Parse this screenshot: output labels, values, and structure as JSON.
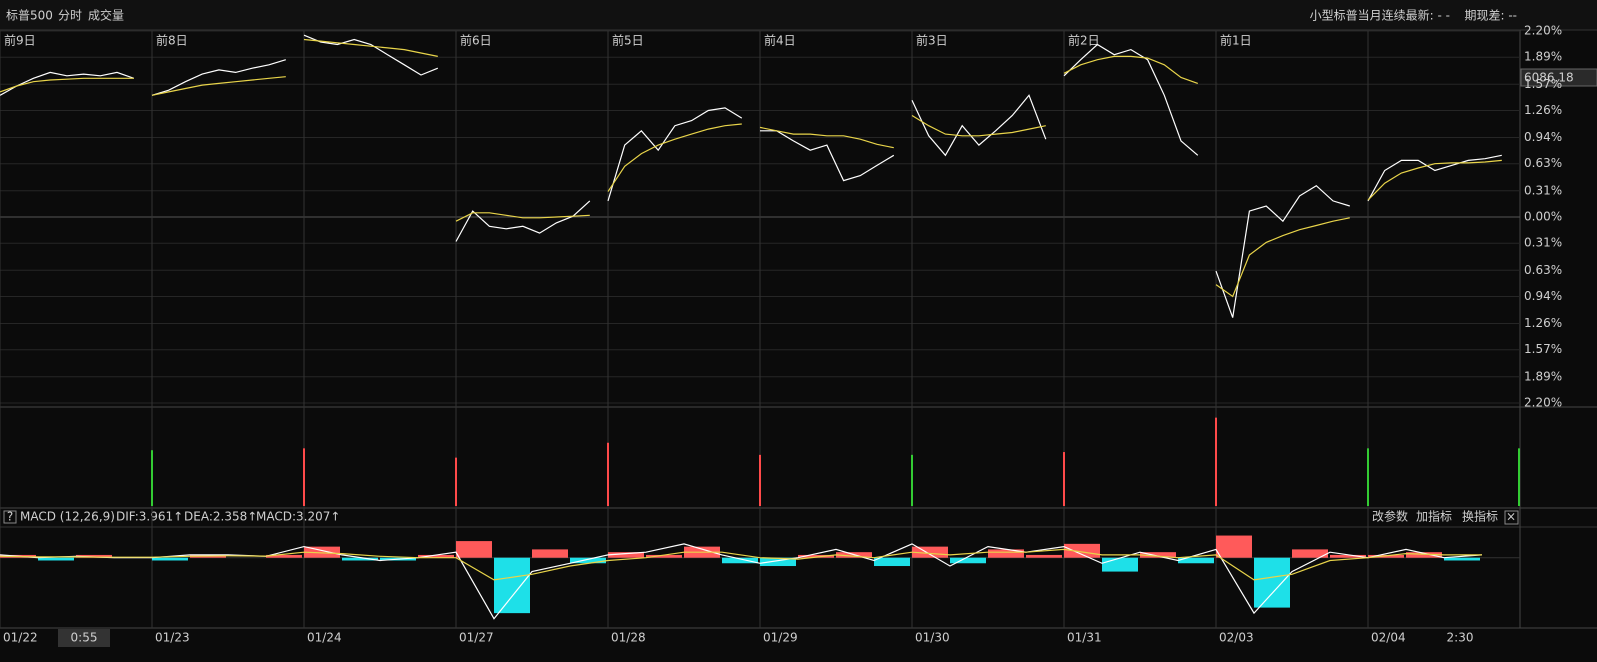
{
  "header": {
    "symbol": "标普500",
    "tabs": [
      "分时",
      "成交量"
    ],
    "right_info": "小型标普当月连续最新: - -",
    "spread": "期现差: --"
  },
  "price_label": "6086.18",
  "date_labels": [
    "01/22",
    "01/23",
    "01/24",
    "01/27",
    "01/28",
    "01/29",
    "01/30",
    "01/31",
    "02/03",
    "02/04"
  ],
  "time_labels": [
    "0:55",
    "2:30"
  ],
  "buttons": [
    "?",
    "改参数",
    "加指标",
    "换指标",
    "×"
  ],
  "chart_data": [
    {
      "type": "line",
      "day_labels": [
        "前9日",
        "前8日",
        null,
        "前6日",
        "前5日",
        "前4日",
        "前3日",
        "前2日",
        "前1日",
        null
      ],
      "xlim": [
        0,
        100
      ],
      "xticks": [
        0,
        10,
        20,
        30,
        40,
        50,
        60,
        70,
        80,
        90
      ],
      "ylim": [
        -2.2,
        2.2
      ],
      "yticks": [
        {
          "value": 2.2,
          "label": "2.20%"
        },
        {
          "value": 1.89,
          "label": "1.89%"
        },
        {
          "value": 1.57,
          "label": "1.57%"
        },
        {
          "value": 1.26,
          "label": "1.26%"
        },
        {
          "value": 0.94,
          "label": "0.94%"
        },
        {
          "value": 0.63,
          "label": "0.63%"
        },
        {
          "value": 0.31,
          "label": "0.31%"
        },
        {
          "value": 0,
          "label": "0.00%"
        },
        {
          "value": -0.31,
          "label": "0.31%"
        },
        {
          "value": -0.63,
          "label": "0.63%"
        },
        {
          "value": -0.94,
          "label": "0.94%"
        },
        {
          "value": -1.26,
          "label": "1.26%"
        },
        {
          "value": -1.57,
          "label": "1.57%"
        },
        {
          "value": -1.89,
          "label": "1.89%"
        },
        {
          "value": -2.2,
          "label": "2.20%"
        }
      ],
      "grid": true,
      "up_color": "#ff4a4a",
      "down_color": "#33cc33",
      "x": [
        0,
        1.1,
        2.2,
        3.3,
        4.4,
        5.5,
        6.6,
        7.7,
        8.8,
        9.9,
        10,
        11.1,
        12.2,
        13.3,
        14.4,
        15.5,
        16.6,
        17.7,
        18.8,
        19.9,
        20,
        21.1,
        22.2,
        23.3,
        24.4,
        25.5,
        26.6,
        27.7,
        28.8,
        29.9,
        30,
        31.1,
        32.2,
        33.3,
        34.4,
        35.5,
        36.6,
        37.7,
        38.8,
        39.9,
        40,
        41.1,
        42.2,
        43.3,
        44.4,
        45.5,
        46.6,
        47.7,
        48.8,
        49.9,
        50,
        51.1,
        52.2,
        53.3,
        54.4,
        55.5,
        56.6,
        57.7,
        58.8,
        59.9,
        60,
        61.1,
        62.2,
        63.3,
        64.4,
        65.5,
        66.6,
        67.7,
        68.8,
        69.9,
        70,
        71.1,
        72.2,
        73.3,
        74.4,
        75.5,
        76.6,
        77.7,
        78.8,
        79.9,
        80,
        81.1,
        82.2,
        83.3,
        84.4,
        85.5,
        86.6,
        87.7,
        88.8,
        89.9,
        90,
        91.1,
        92.2,
        93.3,
        94.4,
        95.5,
        96.6,
        97.7,
        98.8,
        99.9
      ],
      "series": [
        {
          "color": "#ffffff",
          "values": [
            1.44,
            1.55,
            1.64,
            1.71,
            1.67,
            1.69,
            1.67,
            1.71,
            1.64,
            null,
            1.44,
            1.5,
            1.6,
            1.69,
            1.74,
            1.71,
            1.76,
            1.8,
            1.86,
            null,
            2.15,
            2.07,
            2.04,
            2.1,
            2.04,
            1.92,
            1.8,
            1.68,
            1.76,
            null,
            -0.29,
            0.07,
            -0.11,
            -0.14,
            -0.11,
            -0.19,
            -0.07,
            0.01,
            0.19,
            null,
            0.19,
            0.85,
            1.02,
            0.79,
            1.08,
            1.14,
            1.26,
            1.29,
            1.17,
            null,
            1.02,
            1.02,
            0.9,
            0.79,
            0.85,
            0.43,
            0.49,
            0.61,
            0.73,
            null,
            1.38,
            0.96,
            0.73,
            1.08,
            0.85,
            1.02,
            1.2,
            1.44,
            0.92,
            null,
            1.67,
            1.86,
            2.04,
            1.92,
            1.98,
            1.86,
            1.44,
            0.9,
            0.73,
            null,
            -0.64,
            -1.19,
            0.07,
            0.13,
            -0.05,
            0.25,
            0.37,
            0.19,
            0.13,
            null,
            0.19,
            0.55,
            0.67,
            0.67,
            0.55,
            0.61,
            0.67,
            0.69,
            0.73,
            null
          ]
        },
        {
          "color": "#e8d44a",
          "values": [
            1.48,
            1.55,
            1.6,
            1.62,
            1.63,
            1.64,
            1.64,
            1.64,
            1.64,
            null,
            1.44,
            1.48,
            1.52,
            1.56,
            1.58,
            1.6,
            1.62,
            1.64,
            1.66,
            null,
            2.1,
            2.08,
            2.06,
            2.04,
            2.02,
            2,
            1.98,
            1.94,
            1.9,
            null,
            -0.05,
            0.05,
            0.05,
            0.02,
            -0.01,
            -0.01,
            0,
            0.01,
            0.02,
            null,
            0.3,
            0.6,
            0.75,
            0.85,
            0.92,
            0.98,
            1.04,
            1.08,
            1.1,
            null,
            1.06,
            1.02,
            0.98,
            0.98,
            0.96,
            0.96,
            0.92,
            0.86,
            0.82,
            null,
            1.2,
            1.08,
            0.98,
            0.96,
            0.96,
            0.98,
            1,
            1.04,
            1.08,
            null,
            1.7,
            1.8,
            1.86,
            1.9,
            1.9,
            1.88,
            1.8,
            1.65,
            1.58,
            null,
            -0.8,
            -0.94,
            -0.45,
            -0.3,
            -0.22,
            -0.15,
            -0.1,
            -0.05,
            -0.01,
            null,
            0.2,
            0.4,
            0.52,
            0.58,
            0.63,
            0.64,
            0.64,
            0.65,
            0.67,
            null
          ]
        }
      ]
    },
    {
      "type": "bar",
      "xlim": [
        0,
        100
      ],
      "ylim": [
        0,
        100
      ],
      "x": [
        10,
        20,
        30,
        40,
        50,
        60,
        70,
        80,
        90,
        100
      ],
      "values": [
        60,
        62,
        52,
        68,
        55,
        55,
        58,
        95,
        62,
        62
      ],
      "colors": [
        "#33cc33",
        "#ff4a4a",
        "#ff4a4a",
        "#ff4a4a",
        "#ff4a4a",
        "#33cc33",
        "#ff4a4a",
        "#ff4a4a",
        "#33cc33",
        "#33cc33"
      ]
    },
    {
      "type": "macd",
      "indicator": "MACD (12,26,9)",
      "dif_label": "DIF:3.961↑",
      "dea_label": "DEA:2.358↑",
      "macd_label": "MACD:3.207↑",
      "xlim": [
        0,
        100
      ],
      "ylim": [
        -25,
        10
      ],
      "up_color": "#ff5a5a",
      "down_color": "#1ee0e8",
      "x": [
        0,
        2.5,
        5,
        7.5,
        10,
        12.5,
        15,
        17.5,
        20,
        22.5,
        25,
        27.5,
        30,
        32.5,
        35,
        37.5,
        40,
        42.5,
        45,
        47.5,
        50,
        52.5,
        55,
        57.5,
        60,
        62.5,
        65,
        67.5,
        70,
        72.5,
        75,
        77.5,
        80,
        82.5,
        85,
        87.5,
        90,
        92.5,
        95,
        97.5
      ],
      "histogram": [
        1,
        -1,
        1,
        0,
        -1,
        1,
        0,
        1,
        4,
        -1,
        -1,
        1,
        6,
        -20,
        3,
        -2,
        2,
        1,
        4,
        -2,
        -3,
        1,
        2,
        -3,
        4,
        -2,
        3,
        1,
        5,
        -5,
        2,
        -2,
        8,
        -18,
        3,
        1,
        1,
        2,
        -1,
        0
      ],
      "series": [
        {
          "color": "#ffffff",
          "values": [
            1,
            0,
            0.5,
            0,
            0,
            1,
            1,
            0.5,
            4,
            1,
            -1,
            0,
            2,
            -22,
            -5,
            -2,
            1,
            2,
            5,
            1,
            -2,
            0,
            3,
            -1,
            5,
            -3,
            4,
            2,
            4,
            -2,
            2,
            -1,
            3,
            -20,
            -5,
            2,
            0,
            3,
            0,
            1
          ]
        },
        {
          "color": "#e8d44a",
          "values": [
            0.5,
            0.3,
            0.3,
            0.2,
            0.2,
            0.5,
            0.7,
            0.6,
            2,
            1.5,
            0.5,
            0,
            0,
            -8,
            -6,
            -3,
            -1,
            0,
            2,
            2,
            0,
            -0.5,
            1,
            0,
            2,
            1,
            2,
            2,
            3,
            1,
            1,
            0,
            1,
            -8,
            -6,
            -1,
            0,
            1.5,
            1,
            1
          ]
        }
      ]
    }
  ]
}
